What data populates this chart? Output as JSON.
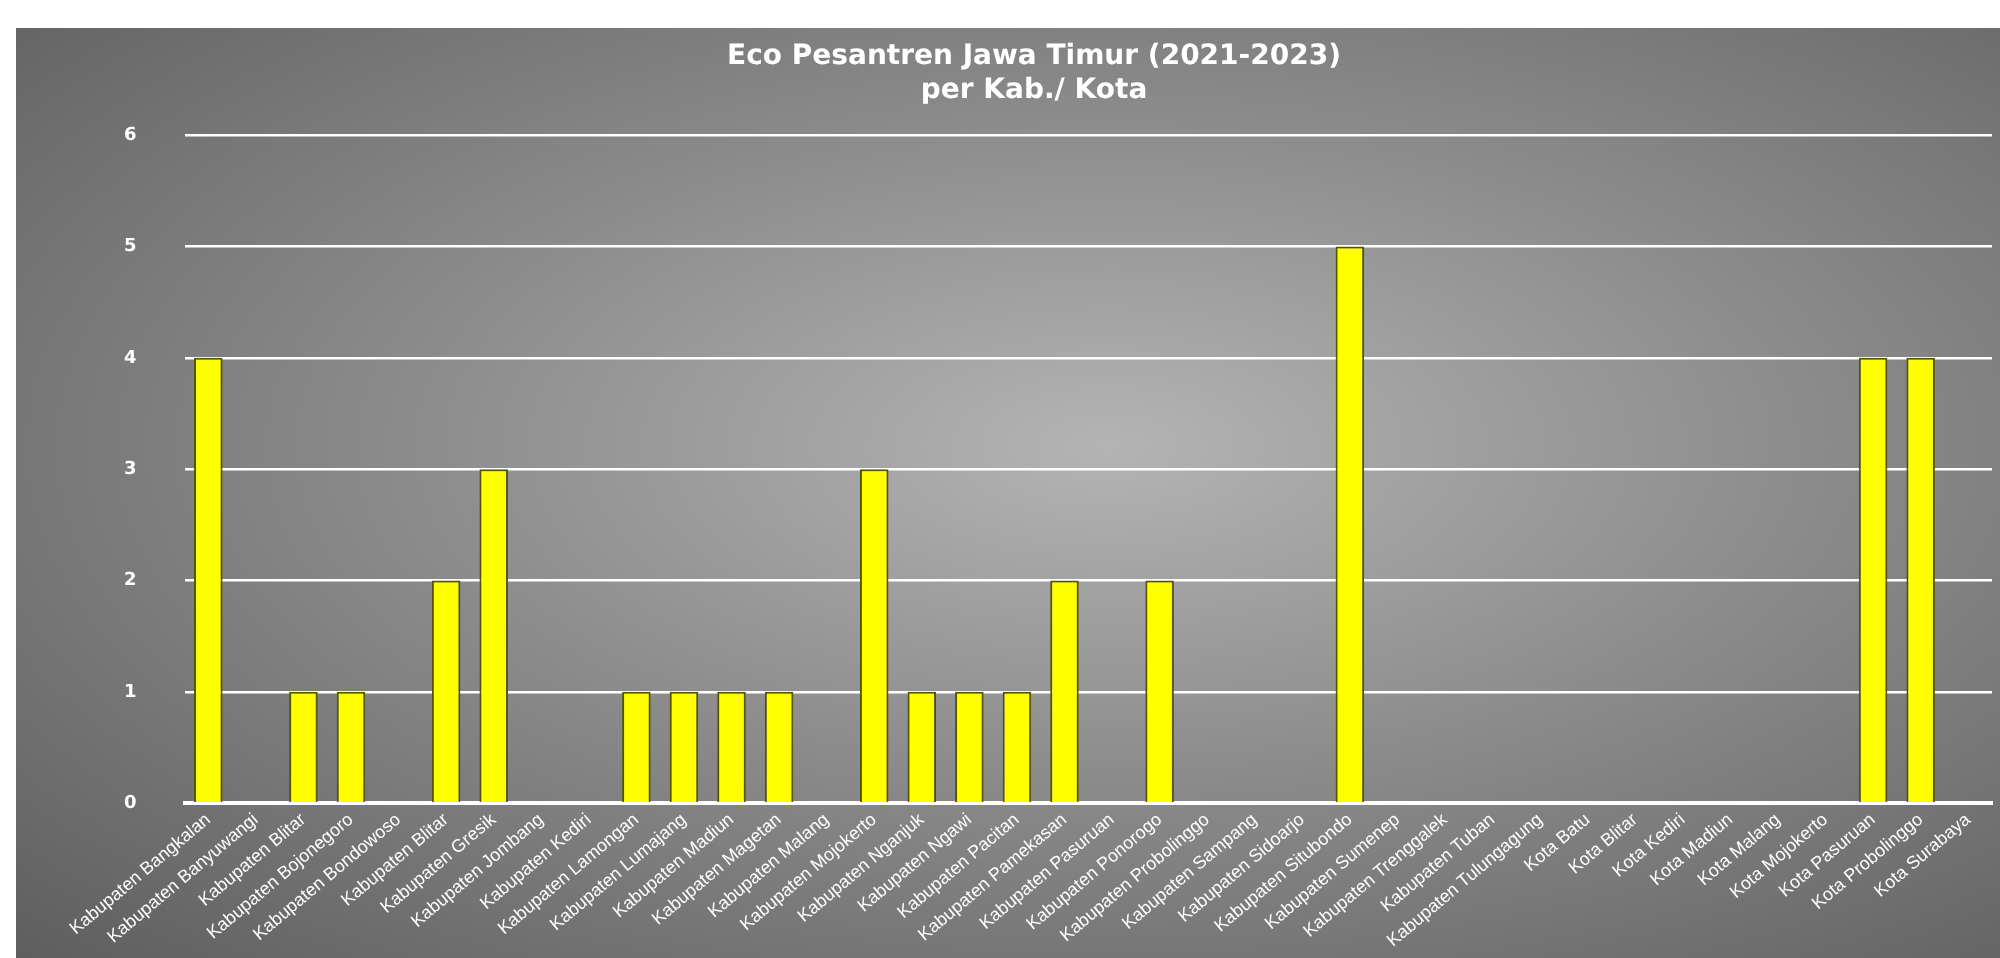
{
  "chart_data": {
    "type": "bar",
    "title": "Eco Pesantren Jawa Timur (2021-2023)",
    "subtitle": "per Kab./ Kota",
    "categories": [
      "Kabupaten Bangkalan",
      "Kabupaten Banyuwangi",
      "Kabupaten Blitar",
      "Kabupaten Bojonegoro",
      "Kabupaten Bondowoso",
      "Kabupaten Blitar",
      "Kabupaten Gresik",
      "Kabupaten Jombang",
      "Kabupaten Kediri",
      "Kabupaten Lamongan",
      "Kabupaten Lumajang",
      "Kabupaten Madiun",
      "Kabupaten Magetan",
      "Kabupaten Malang",
      "Kabupaten Mojokerto",
      "Kabupaten Nganjuk",
      "Kabupaten Ngawi",
      "Kabupaten Pacitan",
      "Kabupaten Pamekasan",
      "Kabupaten Pasuruan",
      "Kabupaten Ponorogo",
      "Kabupaten Probolinggo",
      "Kabupaten Sampang",
      "Kabupaten Sidoarjo",
      "Kabupaten Situbondo",
      "Kabupaten Sumenep",
      "Kabupaten Trenggalek",
      "Kabupaten Tuban",
      "Kabupaten Tulungagung",
      "Kota Batu",
      "Kota Blitar",
      "Kota Kediri",
      "Kota Madiun",
      "Kota Malang",
      "Kota Mojokerto",
      "Kota Pasuruan",
      "Kota Probolinggo",
      "Kota Surabaya"
    ],
    "values": [
      4,
      0,
      1,
      1,
      0,
      2,
      3,
      0,
      0,
      1,
      1,
      1,
      1,
      0,
      3,
      1,
      1,
      1,
      2,
      0,
      2,
      0,
      0,
      0,
      5,
      0,
      0,
      0,
      0,
      0,
      0,
      0,
      0,
      0,
      0,
      4,
      4,
      null
    ],
    "color": "#ffff00",
    "ylim": [
      0,
      6
    ],
    "yticks": [
      0,
      1,
      2,
      3,
      4,
      5,
      6
    ],
    "grid": "y"
  }
}
